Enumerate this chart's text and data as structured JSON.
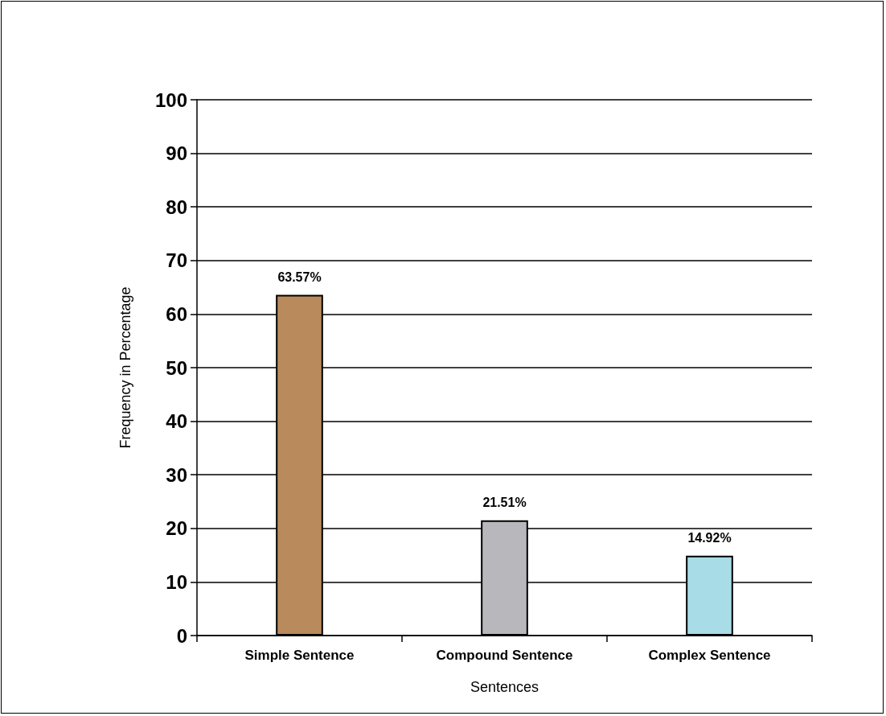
{
  "chart_data": {
    "type": "bar",
    "xlabel": "Sentences",
    "ylabel": "Frequency in Percentage",
    "categories": [
      "Simple Sentence",
      "Compound Sentence",
      "Complex Sentence"
    ],
    "values": [
      63.57,
      21.51,
      14.92
    ],
    "colors": [
      "#b88a5c",
      "#b8b8bc",
      "#a8dce6"
    ],
    "value_labels": [
      "63.57%",
      "21.51%",
      "14.92%"
    ],
    "ylim": [
      0,
      100
    ],
    "yticks": [
      0,
      10,
      20,
      30,
      40,
      50,
      60,
      70,
      80,
      90,
      100
    ],
    "grid": "y"
  }
}
